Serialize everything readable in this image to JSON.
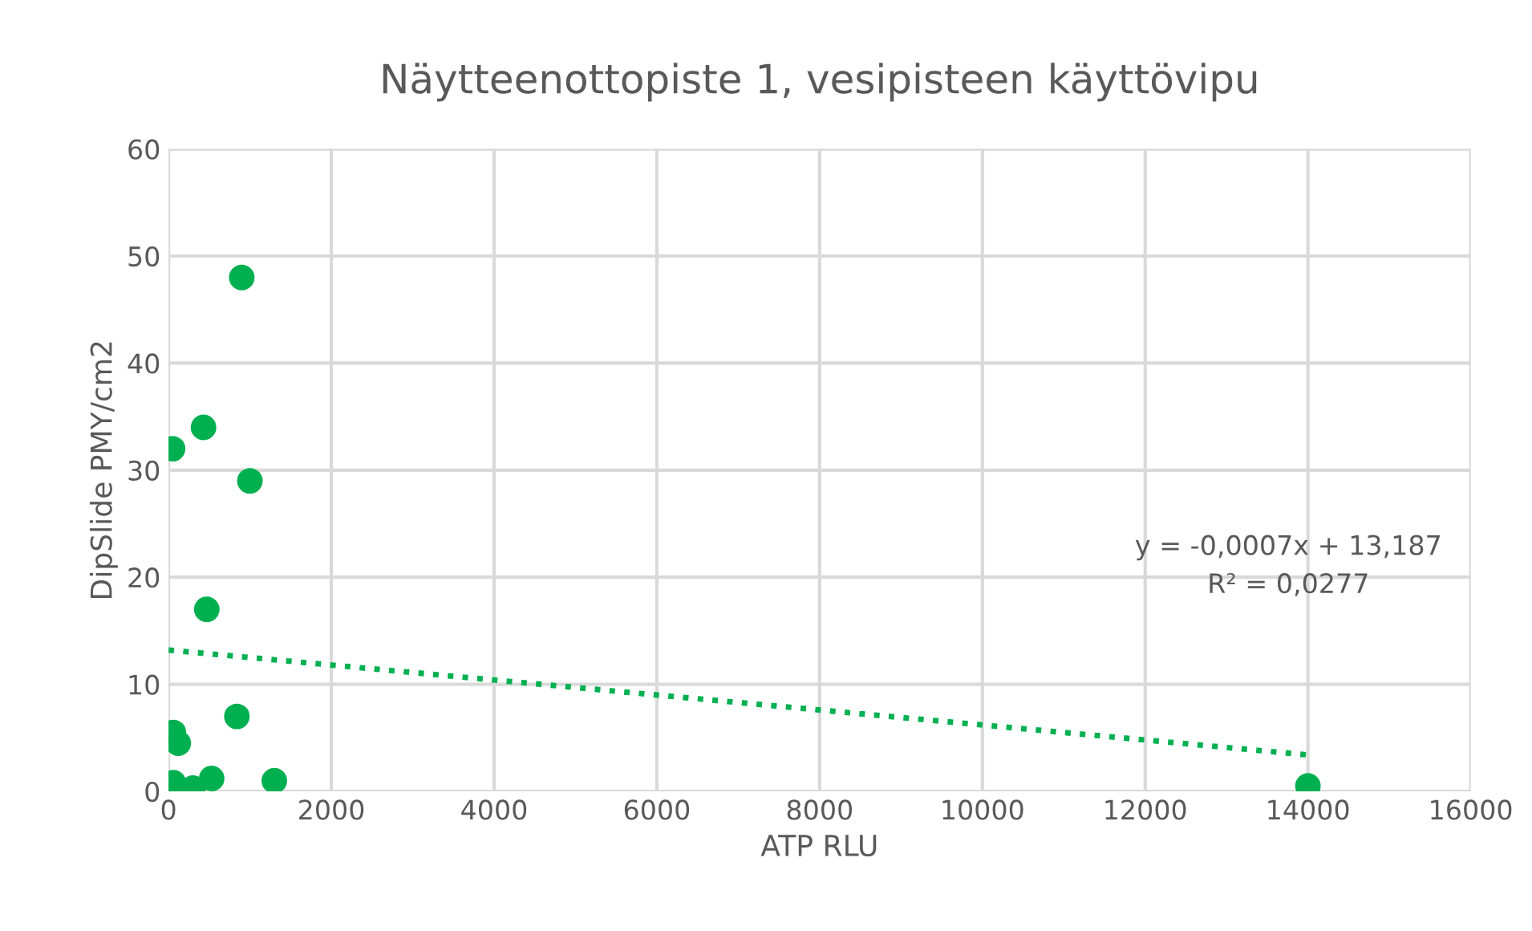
{
  "chart_data": {
    "type": "scatter",
    "title": "Näytteenottopiste 1, vesipisteen käyttövipu",
    "xlabel": "ATP RLU",
    "ylabel": "DipSlide PMY/cm2",
    "xlim": [
      0,
      16000
    ],
    "xticks": [
      0,
      2000,
      4000,
      6000,
      8000,
      10000,
      12000,
      14000,
      16000
    ],
    "ylim": [
      0,
      60
    ],
    "yticks": [
      0,
      10,
      20,
      30,
      40,
      50,
      60
    ],
    "grid": true,
    "series": [
      {
        "color": "#00b050",
        "marker": "circle",
        "x": [
          900,
          50,
          430,
          1000,
          470,
          840,
          60,
          120,
          1300,
          530,
          60,
          300,
          14000
        ],
        "values": [
          48,
          32,
          34,
          29,
          17,
          7,
          5.5,
          4.5,
          1,
          1.2,
          0.8,
          0.3,
          0.5
        ]
      },
      {
        "type": "line",
        "color": "#00b050",
        "line_style": "dotted",
        "x": [
          0,
          14000
        ],
        "values": [
          13.2,
          3.4
        ]
      }
    ],
    "annotations": [
      "y = -0,0007x + 13,187\nR² = 0,0277"
    ]
  }
}
